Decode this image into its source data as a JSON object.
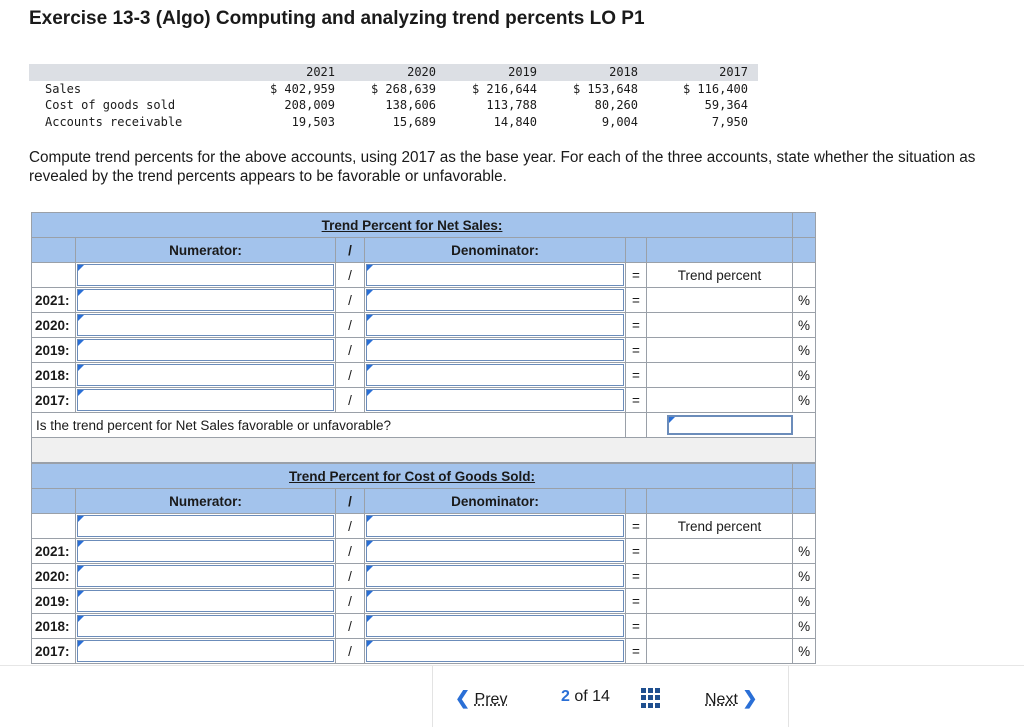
{
  "title": "Exercise 13-3 (Algo) Computing and analyzing trend percents LO P1",
  "data_table": {
    "years": [
      "2021",
      "2020",
      "2019",
      "2018",
      "2017"
    ],
    "rows": [
      {
        "label": "Sales",
        "values": [
          "$ 402,959",
          "$ 268,639",
          "$ 216,644",
          "$ 153,648",
          "$ 116,400"
        ]
      },
      {
        "label": "Cost of goods sold",
        "values": [
          "208,009",
          "138,606",
          "113,788",
          "80,260",
          "59,364"
        ]
      },
      {
        "label": "Accounts receivable",
        "values": [
          "19,503",
          "15,689",
          "14,840",
          "9,004",
          "7,950"
        ]
      }
    ]
  },
  "instructions": "Compute trend percents for the above accounts, using 2017 as the base year. For each of the three accounts, state whether the situation as revealed by the trend percents appears to be favorable or unfavorable.",
  "sections": [
    {
      "caption": "Trend Percent for Net Sales:",
      "numerator_label": "Numerator:",
      "slash": "/",
      "denominator_label": "Denominator:",
      "equals": "=",
      "result_label": "Trend percent",
      "percent": "%",
      "years": [
        "2021:",
        "2020:",
        "2019:",
        "2018:",
        "2017:"
      ],
      "question": "Is the trend percent for Net Sales favorable or unfavorable?"
    },
    {
      "caption": "Trend Percent for Cost of Goods Sold:",
      "numerator_label": "Numerator:",
      "slash": "/",
      "denominator_label": "Denominator:",
      "equals": "=",
      "result_label": "Trend percent",
      "percent": "%",
      "years": [
        "2021:",
        "2020:",
        "2019:",
        "2018:",
        "2017:"
      ]
    }
  ],
  "footer": {
    "prev_label": "Prev",
    "prev_icon": "chevron-left-icon",
    "current_page": "2",
    "of_text": "of",
    "total_pages": "14",
    "grid_icon": "grid-icon",
    "next_label": "Next",
    "next_icon": "chevron-right-icon",
    "accent_color": "#2a6fd6"
  }
}
